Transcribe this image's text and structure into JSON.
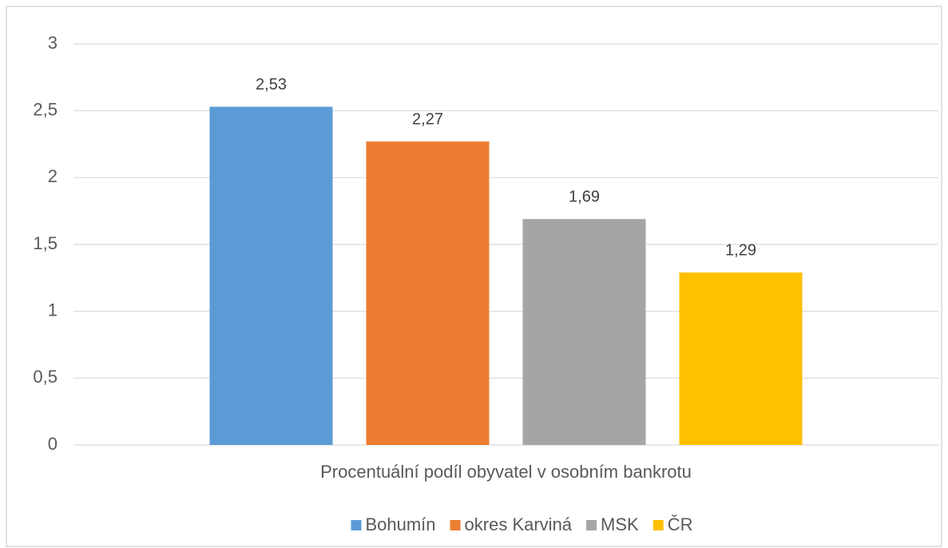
{
  "chart_data": {
    "type": "bar",
    "categories": [
      "Procentuální podíl obyvatel v osobním bankrotu"
    ],
    "series": [
      {
        "name": "Bohumín",
        "color": "#5b9bd5",
        "values": [
          2.53
        ],
        "value_labels": [
          "2,53"
        ]
      },
      {
        "name": "okres Karviná",
        "color": "#ed7d31",
        "values": [
          2.27
        ],
        "value_labels": [
          "2,27"
        ]
      },
      {
        "name": "MSK",
        "color": "#a5a5a5",
        "values": [
          1.69
        ],
        "value_labels": [
          "1,69"
        ]
      },
      {
        "name": "ČR",
        "color": "#ffc000",
        "values": [
          1.29
        ],
        "value_labels": [
          "1,29"
        ]
      }
    ],
    "ylim": [
      0,
      3
    ],
    "yticks": [
      0,
      {
        "value": 0.5,
        "label": "0,5"
      },
      1,
      {
        "value": 1.5,
        "label": "1,5"
      },
      2,
      {
        "value": 2.5,
        "label": "2,5"
      },
      3
    ],
    "grid": true,
    "legend": "bottom"
  }
}
